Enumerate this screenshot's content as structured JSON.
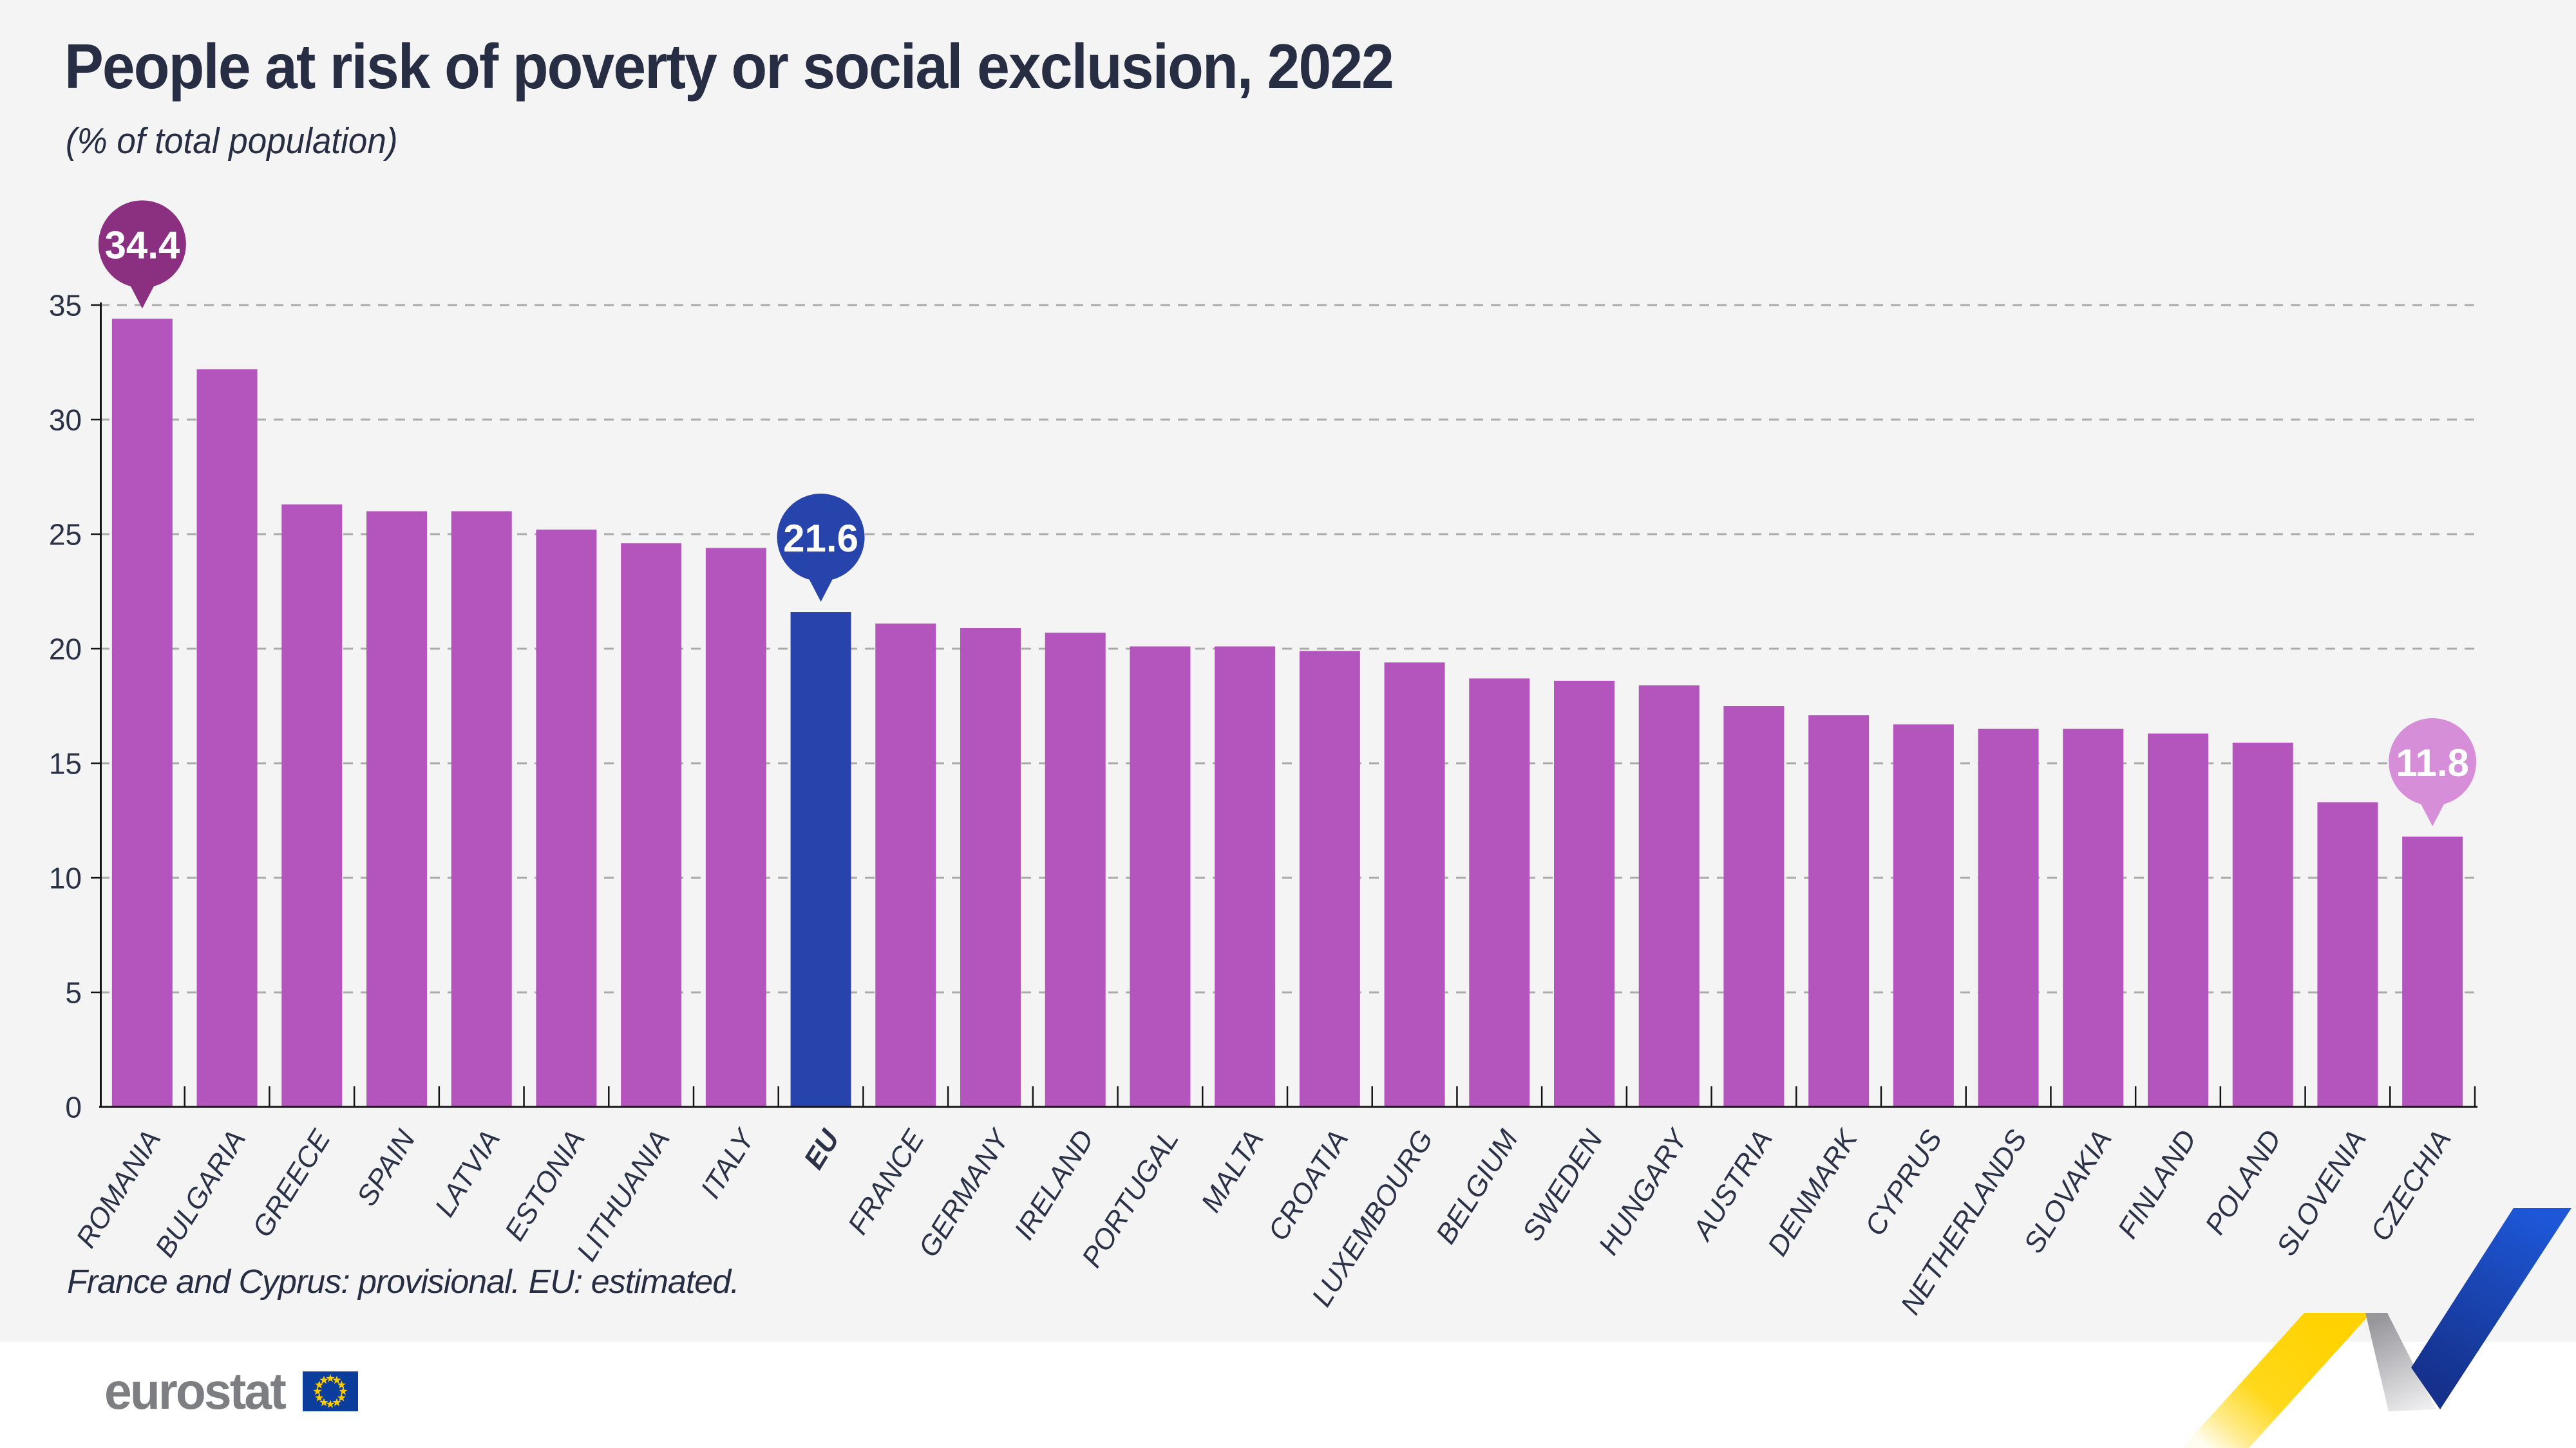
{
  "title": "People at risk of poverty or social exclusion, 2022",
  "subtitle": "(% of total population)",
  "footnote": "France and Cyprus: provisional. EU: estimated.",
  "logo_text": "eurostat",
  "chart_data": {
    "type": "bar",
    "title": "People at risk of poverty or social exclusion, 2022",
    "ylabel": "% of total population",
    "xlabel": "",
    "ylim": [
      0,
      35
    ],
    "y_ticks": [
      0,
      5,
      10,
      15,
      20,
      25,
      30,
      35
    ],
    "grid": "horizontal-dashed",
    "categories": [
      "ROMANIA",
      "BULGARIA",
      "GREECE",
      "SPAIN",
      "LATVIA",
      "ESTONIA",
      "LITHUANIA",
      "ITALY",
      "EU",
      "FRANCE",
      "GERMANY",
      "IRELAND",
      "PORTUGAL",
      "MALTA",
      "CROATIA",
      "LUXEMBOURG",
      "BELGIUM",
      "SWEDEN",
      "HUNGARY",
      "AUSTRIA",
      "DENMARK",
      "CYPRUS",
      "NETHERLANDS",
      "SLOVAKIA",
      "FINLAND",
      "POLAND",
      "SLOVENIA",
      "CZECHIA"
    ],
    "values": [
      34.4,
      32.2,
      26.3,
      26.0,
      26.0,
      25.2,
      24.6,
      24.4,
      21.6,
      21.1,
      20.9,
      20.7,
      20.1,
      20.1,
      19.9,
      19.4,
      18.7,
      18.6,
      18.4,
      17.5,
      17.1,
      16.7,
      16.5,
      16.5,
      16.3,
      15.9,
      13.3,
      11.8
    ],
    "highlight_category": "EU",
    "annotations": [
      {
        "category": "ROMANIA",
        "label": "34.4",
        "bubble_color": "#8b2f80",
        "text_color": "#ffffff"
      },
      {
        "category": "EU",
        "label": "21.6",
        "bubble_color": "#2744ac",
        "text_color": "#ffffff"
      },
      {
        "category": "CZECHIA",
        "label": "11.8",
        "bubble_color": "#d68ed9",
        "text_color": "#ffffff"
      }
    ],
    "colors": {
      "bar": "#b455be",
      "highlight_bar": "#2744ac",
      "grid": "#ababab",
      "axis": "#141414",
      "text": "#2b3147"
    }
  }
}
